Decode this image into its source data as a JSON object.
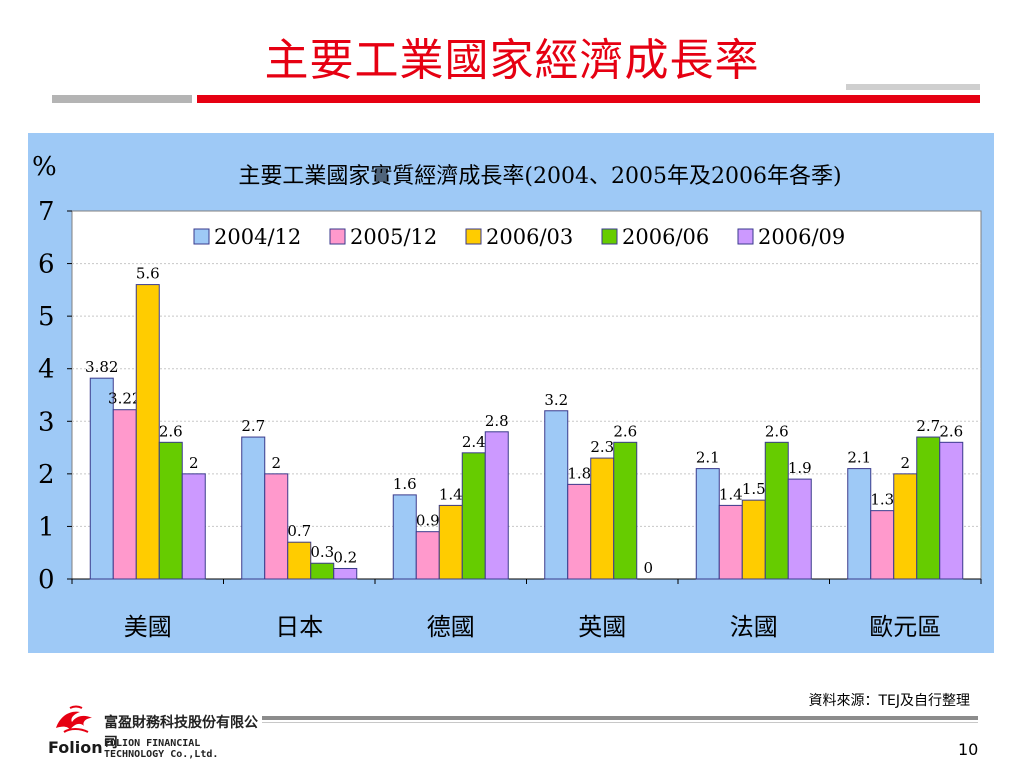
{
  "slide": {
    "title": "主要工業國家經濟成長率",
    "source": "資料來源：TEJ及自行整理",
    "page_number": "10"
  },
  "company": {
    "logo_text": "Folion",
    "name_zh": "富盈財務科技股份有限公司",
    "name_en": "FOLION FINANCIAL TECHNOLOGY Co.,Ltd."
  },
  "colors": {
    "panel_bg": "#9ec9f6",
    "title_red": "#e60012"
  },
  "chart_data": {
    "type": "bar",
    "title": "主要工業國家實質經濟成長率(2004、2005年及2006年各季)",
    "ylabel": "%",
    "xlabel": "",
    "ylim": [
      0,
      7
    ],
    "yticks": [
      "0",
      "1",
      "2",
      "3",
      "4",
      "5",
      "6",
      "7"
    ],
    "grid": true,
    "legend": "top",
    "categories": [
      "美國",
      "日本",
      "德國",
      "英國",
      "法國",
      "歐元區"
    ],
    "series": [
      {
        "name": "2004/12",
        "color": "#9ec9f6",
        "values": [
          3.82,
          2.7,
          1.6,
          3.2,
          2.1,
          2.1
        ],
        "labels": [
          "3.82",
          "2.7",
          "1.6",
          "3.2",
          "2.1",
          "2.1"
        ]
      },
      {
        "name": "2005/12",
        "color": "#ff99cc",
        "values": [
          3.22,
          2,
          0.9,
          1.8,
          1.4,
          1.3
        ],
        "labels": [
          "3.22",
          "2",
          "0.9",
          "1.8",
          "1.4",
          "1.3"
        ]
      },
      {
        "name": "2006/03",
        "color": "#ffcc00",
        "values": [
          5.6,
          0.7,
          1.4,
          2.3,
          1.5,
          2
        ],
        "labels": [
          "5.6",
          "0.7",
          "1.4",
          "2.3",
          "1.5",
          "2"
        ]
      },
      {
        "name": "2006/06",
        "color": "#66cc00",
        "values": [
          2.6,
          0.3,
          2.4,
          2.6,
          2.6,
          2.7
        ],
        "labels": [
          "2.6",
          "0.3",
          "2.4",
          "2.6",
          "2.6",
          "2.7"
        ]
      },
      {
        "name": "2006/09",
        "color": "#cc99ff",
        "values": [
          2,
          0.2,
          2.8,
          0,
          1.9,
          2.6
        ],
        "labels": [
          "2",
          "0.2",
          "2.8",
          "0",
          "1.9",
          "2.6"
        ]
      }
    ]
  }
}
